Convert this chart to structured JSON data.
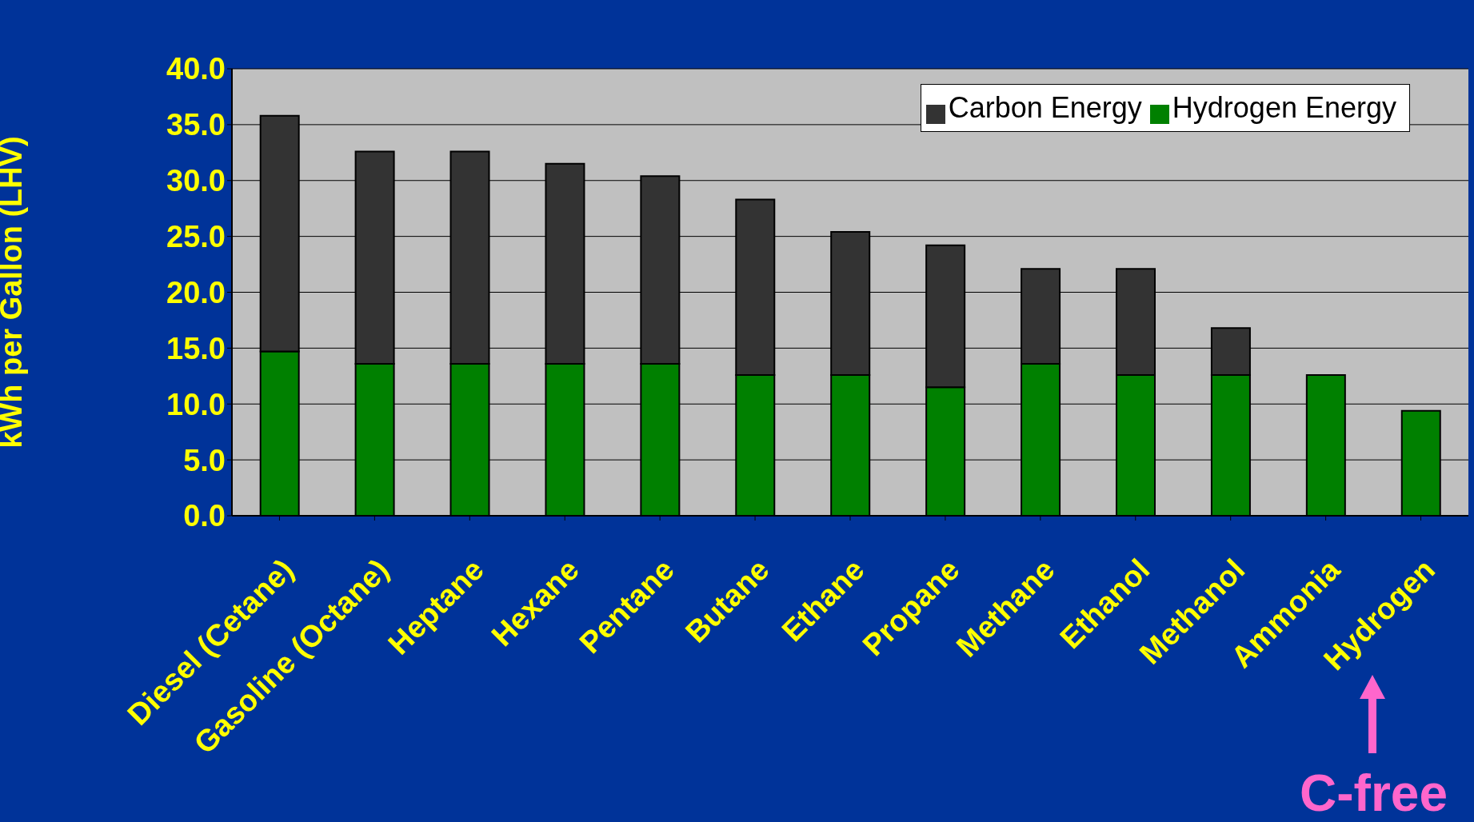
{
  "chart_data": {
    "type": "bar",
    "stacked": true,
    "ylabel": "kWh per Gallon (LHV)",
    "categories": [
      "Diesel (Cetane)",
      "Gasoline (Octane)",
      "Heptane",
      "Hexane",
      "Pentane",
      "Butane",
      "Ethane",
      "Propane",
      "Methane",
      "Ethanol",
      "Methanol",
      "Ammonia",
      "Hydrogen"
    ],
    "series": [
      {
        "name": "Hydrogen Energy",
        "color": "#008000",
        "values": [
          14.7,
          13.6,
          13.6,
          13.6,
          13.6,
          12.6,
          12.6,
          11.5,
          13.6,
          12.6,
          12.6,
          12.6,
          9.4
        ]
      },
      {
        "name": "Carbon Energy",
        "color": "#333333",
        "values": [
          21.1,
          19.0,
          19.0,
          17.9,
          16.8,
          15.7,
          12.8,
          12.7,
          8.5,
          9.5,
          4.2,
          0,
          0
        ]
      }
    ],
    "ylim": [
      0,
      40
    ],
    "yticks": [
      {
        "value": 0,
        "label": "0.0"
      },
      {
        "value": 5,
        "label": "5.0"
      },
      {
        "value": 10,
        "label": "10.0"
      },
      {
        "value": 15,
        "label": "15.0"
      },
      {
        "value": 20,
        "label": "20.0"
      },
      {
        "value": 25,
        "label": "25.0"
      },
      {
        "value": 30,
        "label": "30.0"
      },
      {
        "value": 35,
        "label": "35.0"
      },
      {
        "value": 40,
        "label": "40.0"
      }
    ],
    "grid": "y",
    "legend": "top right",
    "annotations": [
      "C-free"
    ]
  }
}
